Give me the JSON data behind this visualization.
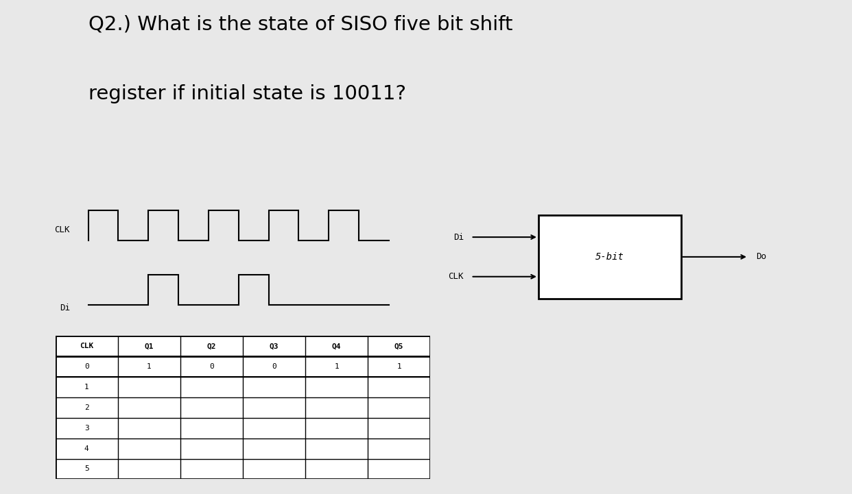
{
  "title_line1": "Q2.) What is the state of SISO five bit shift",
  "title_line2": "register if initial state is 10011?",
  "bg_color": "#e8e8e8",
  "page_color": "#ffffff",
  "table_headers": [
    "CLK",
    "Q1",
    "Q2",
    "Q3",
    "Q4",
    "Q5"
  ],
  "table_row0": [
    "0",
    "1",
    "0",
    "0",
    "1",
    "1"
  ],
  "table_rows": [
    "1",
    "2",
    "3",
    "4",
    "5"
  ],
  "clk_signal_x": [
    0,
    0,
    0.5,
    0.5,
    1,
    1,
    1.5,
    1.5,
    2,
    2,
    2.5,
    2.5,
    3,
    3,
    3.5,
    3.5,
    4,
    4,
    4.5,
    4.5,
    5
  ],
  "clk_signal_y": [
    0,
    1,
    1,
    0,
    0,
    1,
    1,
    0,
    0,
    1,
    1,
    0,
    0,
    1,
    1,
    0,
    0,
    1,
    1,
    0,
    0
  ],
  "di_signal_x": [
    0,
    1,
    1,
    1.5,
    1.5,
    2.5,
    2.5,
    3,
    3,
    4,
    4,
    5
  ],
  "di_signal_y": [
    0,
    0,
    1,
    1,
    0,
    0,
    1,
    1,
    0,
    0,
    0,
    0
  ],
  "clk_label": "CLK",
  "di_label": "Di",
  "block_label": "5-bit",
  "di_arrow_label": "Di",
  "clk_arrow_label": "CLK",
  "do_label": "Do"
}
